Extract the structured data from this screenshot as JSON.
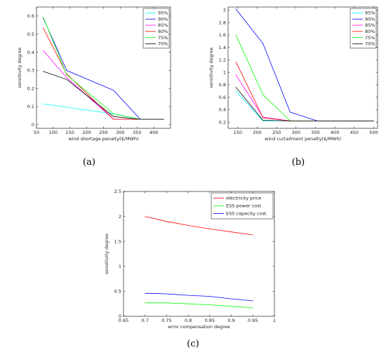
{
  "chart_data": [
    {
      "type": "line",
      "caption": "(a)",
      "xlabel": "wind shortage penalty($/MWh)",
      "ylabel": "sensitivity degree",
      "xlim": [
        50,
        450
      ],
      "ylim": [
        -0.02,
        0.65
      ],
      "xticks": [
        50,
        100,
        150,
        200,
        250,
        300,
        350,
        400
      ],
      "yticks": [
        0,
        0.1,
        0.2,
        0.3,
        0.4,
        0.5,
        0.6
      ],
      "legend": "top-right",
      "series": [
        {
          "name": "95%",
          "color": "#00ffff",
          "x": [
            70,
            280,
            360,
            430
          ],
          "y": [
            0.115,
            0.06,
            0.03,
            0.03
          ]
        },
        {
          "name": "90%",
          "color": "#0000ff",
          "x": [
            70,
            140,
            280,
            360,
            430
          ],
          "y": [
            0.59,
            0.3,
            0.19,
            0.03,
            0.03
          ]
        },
        {
          "name": "85%",
          "color": "#ff00ff",
          "x": [
            70,
            140,
            280,
            360,
            430
          ],
          "y": [
            0.41,
            0.26,
            0.03,
            0.03,
            0.03
          ]
        },
        {
          "name": "80%",
          "color": "#ff0000",
          "x": [
            70,
            140,
            280,
            360,
            430
          ],
          "y": [
            0.535,
            0.28,
            0.03,
            0.03,
            0.03
          ]
        },
        {
          "name": "75%",
          "color": "#00ff00",
          "x": [
            70,
            140,
            280,
            360,
            430
          ],
          "y": [
            0.595,
            0.275,
            0.06,
            0.03,
            0.03
          ]
        },
        {
          "name": "70%",
          "color": "#000000",
          "x": [
            70,
            140,
            280,
            360,
            430
          ],
          "y": [
            0.295,
            0.25,
            0.045,
            0.03,
            0.03
          ]
        }
      ]
    },
    {
      "type": "line",
      "caption": "(b)",
      "xlabel": "wind curtailment penalty($/MWh)",
      "ylabel": "sensitivity degree",
      "xlim": [
        125,
        510
      ],
      "ylim": [
        0.1,
        2.05
      ],
      "xticks": [
        150,
        200,
        250,
        300,
        350,
        400,
        450,
        500
      ],
      "yticks": [
        0.2,
        0.4,
        0.6,
        0.8,
        1,
        1.2,
        1.4,
        1.6,
        1.8,
        2
      ],
      "legend": "top-right",
      "series": [
        {
          "name": "95%",
          "color": "#00ffff",
          "x": [
            145,
            215,
            285,
            355,
            500
          ],
          "y": [
            0.7,
            0.22,
            0.22,
            0.22,
            0.22
          ]
        },
        {
          "name": "90%",
          "color": "#0000ff",
          "x": [
            145,
            215,
            285,
            355,
            500
          ],
          "y": [
            2.02,
            1.46,
            0.36,
            0.22,
            0.22
          ]
        },
        {
          "name": "85%",
          "color": "#ff00ff",
          "x": [
            145,
            215,
            285,
            355,
            500
          ],
          "y": [
            0.96,
            0.28,
            0.22,
            0.22,
            0.22
          ]
        },
        {
          "name": "80%",
          "color": "#ff0000",
          "x": [
            145,
            215,
            285,
            355,
            500
          ],
          "y": [
            1.17,
            0.27,
            0.22,
            0.22,
            0.22
          ]
        },
        {
          "name": "75%",
          "color": "#00ff00",
          "x": [
            145,
            215,
            285,
            355,
            500
          ],
          "y": [
            1.6,
            0.64,
            0.22,
            0.22,
            0.22
          ]
        },
        {
          "name": "70%",
          "color": "#000000",
          "x": [
            145,
            215,
            285,
            355,
            500
          ],
          "y": [
            0.76,
            0.23,
            0.22,
            0.22,
            0.22
          ]
        }
      ]
    },
    {
      "type": "line",
      "caption": "(c)",
      "xlabel": "error compensation degree",
      "ylabel": "sensitivity degree",
      "xlim": [
        0.65,
        1
      ],
      "ylim": [
        0,
        2.5
      ],
      "xticks": [
        0.65,
        0.7,
        0.75,
        0.8,
        0.85,
        0.9,
        0.95,
        1
      ],
      "yticks": [
        0,
        0.5,
        1,
        1.5,
        2,
        2.5
      ],
      "legend": "top-right",
      "series": [
        {
          "name": "electricity price",
          "color": "#ff0000",
          "x": [
            0.7,
            0.75,
            0.8,
            0.85,
            0.9,
            0.95
          ],
          "y": [
            2.0,
            1.9,
            1.82,
            1.75,
            1.69,
            1.63
          ]
        },
        {
          "name": "ESS power cost",
          "color": "#00ff00",
          "x": [
            0.7,
            0.75,
            0.8,
            0.85,
            0.9,
            0.95
          ],
          "y": [
            0.27,
            0.27,
            0.25,
            0.23,
            0.2,
            0.17
          ]
        },
        {
          "name": "ESS capacity cost",
          "color": "#0000ff",
          "x": [
            0.7,
            0.75,
            0.8,
            0.85,
            0.9,
            0.95
          ],
          "y": [
            0.46,
            0.45,
            0.42,
            0.4,
            0.35,
            0.31
          ]
        }
      ]
    }
  ]
}
